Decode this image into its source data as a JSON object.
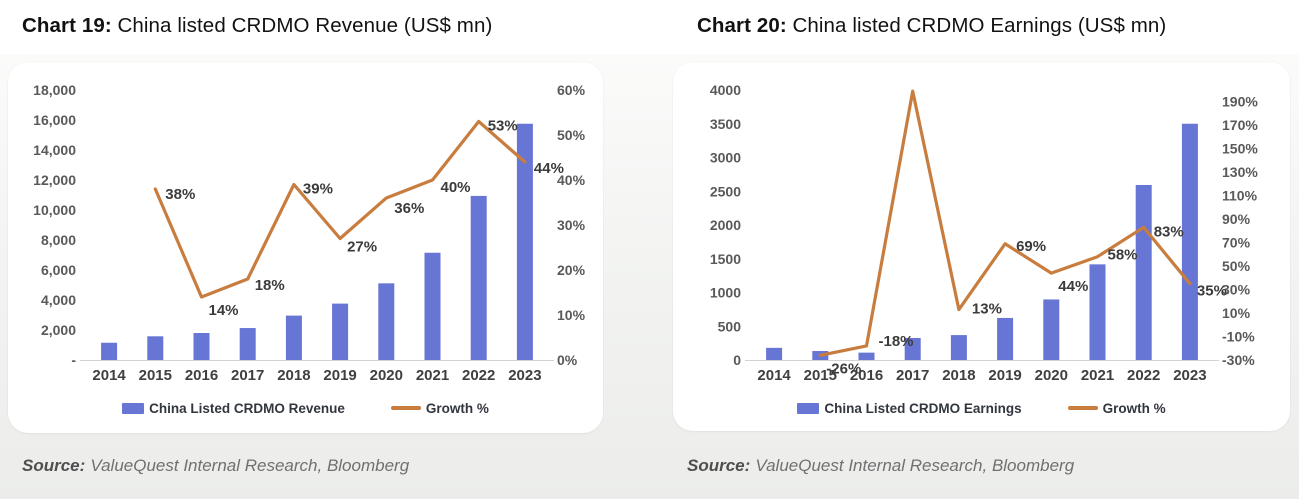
{
  "page": {
    "background": "#ffffff",
    "charts": [
      {
        "title": {
          "prefix": "Chart 19:",
          "rest": "China listed CRDMO Revenue (US$ mn)"
        },
        "source": {
          "prefix": "Source:",
          "rest": "ValueQuest Internal Research, Bloomberg"
        }
      },
      {
        "title": {
          "prefix": "Chart 20:",
          "rest": "China listed CRDMO Earnings (US$ mn)"
        },
        "source": {
          "prefix": "Source:",
          "rest": "ValueQuest Internal Research, Bloomberg"
        }
      }
    ]
  },
  "colors": {
    "bar": "#6775d4",
    "line": "#c87d3e",
    "tick_text": "#595959",
    "data_label_text": "#3b3b3b",
    "axis_line": "#d2d2d2",
    "card_bg": "#ffffff",
    "band_bg": "#ecedeb"
  },
  "chart_data": [
    {
      "type": "bar",
      "subtype": "bar-line-combo",
      "title": "Chart 19: China listed CRDMO Revenue (US$ mn)",
      "categories": [
        "2014",
        "2015",
        "2016",
        "2017",
        "2018",
        "2019",
        "2020",
        "2021",
        "2022",
        "2023"
      ],
      "series": [
        {
          "name": "China Listed CRDMO Revenue",
          "type": "bar",
          "axis": "left",
          "values": [
            1150,
            1580,
            1800,
            2130,
            2960,
            3760,
            5110,
            7150,
            10940,
            15750
          ]
        },
        {
          "name": "Growth %",
          "type": "line",
          "axis": "right",
          "values": [
            null,
            38,
            14,
            18,
            39,
            27,
            36,
            40,
            53,
            44
          ],
          "labels": [
            "",
            "38%",
            "14%",
            "18%",
            "39%",
            "27%",
            "36%",
            "40%",
            "53%",
            "44%"
          ],
          "label_offsets": [
            [
              0,
              0
            ],
            [
              10,
              5
            ],
            [
              7,
              13
            ],
            [
              7,
              6
            ],
            [
              9,
              4
            ],
            [
              7,
              8
            ],
            [
              8,
              10
            ],
            [
              8,
              7
            ],
            [
              9,
              4
            ],
            [
              9,
              6
            ]
          ]
        }
      ],
      "left_axis": {
        "min": 0,
        "max": 18000,
        "tick_values": [
          18000,
          16000,
          14000,
          12000,
          10000,
          8000,
          6000,
          4000,
          2000,
          0
        ],
        "tick_labels": [
          "18,000",
          "16,000",
          "14,000",
          "12,000",
          "10,000",
          "8,000",
          "6,000",
          "4,000",
          "2,000",
          "-"
        ]
      },
      "right_axis": {
        "min": 0,
        "max": 60,
        "tick_values": [
          60,
          50,
          40,
          30,
          20,
          10,
          0
        ],
        "tick_labels": [
          "60%",
          "50%",
          "40%",
          "30%",
          "20%",
          "10%",
          "0%"
        ]
      },
      "grid": false,
      "legend_position": "bottom"
    },
    {
      "type": "bar",
      "subtype": "bar-line-combo",
      "title": "Chart 20: China listed CRDMO Earnings (US$ mn)",
      "categories": [
        "2014",
        "2015",
        "2016",
        "2017",
        "2018",
        "2019",
        "2020",
        "2021",
        "2022",
        "2023"
      ],
      "series": [
        {
          "name": "China Listed CRDMO Earnings",
          "type": "bar",
          "axis": "left",
          "values": [
            180,
            133,
            109,
            326,
            369,
            623,
            897,
            1417,
            2593,
            3500
          ]
        },
        {
          "name": "Growth %",
          "type": "line",
          "axis": "right",
          "values": [
            null,
            -26,
            -18,
            199,
            13,
            69,
            44,
            58,
            83,
            35
          ],
          "labels": [
            "",
            "-26%",
            "-18%",
            "",
            "13%",
            "69%",
            "44%",
            "58%",
            "83%",
            "35%"
          ],
          "label_offsets": [
            [
              0,
              0
            ],
            [
              6,
              13
            ],
            [
              12,
              -5
            ],
            [
              0,
              0
            ],
            [
              13,
              -1
            ],
            [
              11,
              2
            ],
            [
              7,
              13
            ],
            [
              10,
              -2
            ],
            [
              10,
              4
            ],
            [
              7,
              7
            ]
          ]
        }
      ],
      "left_axis": {
        "min": 0,
        "max": 4000,
        "tick_values": [
          4000,
          3500,
          3000,
          2500,
          2000,
          1500,
          1000,
          500,
          0
        ],
        "tick_labels": [
          "4000",
          "3500",
          "3000",
          "2500",
          "2000",
          "1500",
          "1000",
          "500",
          "0"
        ]
      },
      "right_axis": {
        "min": -30,
        "max": 200,
        "tick_values": [
          190,
          170,
          150,
          130,
          110,
          90,
          70,
          50,
          30,
          10,
          -10,
          -30
        ],
        "tick_labels": [
          "190%",
          "170%",
          "150%",
          "130%",
          "110%",
          "90%",
          "70%",
          "50%",
          "30%",
          "10%",
          "-10%",
          "-30%"
        ]
      },
      "grid": false,
      "legend_position": "bottom"
    }
  ]
}
